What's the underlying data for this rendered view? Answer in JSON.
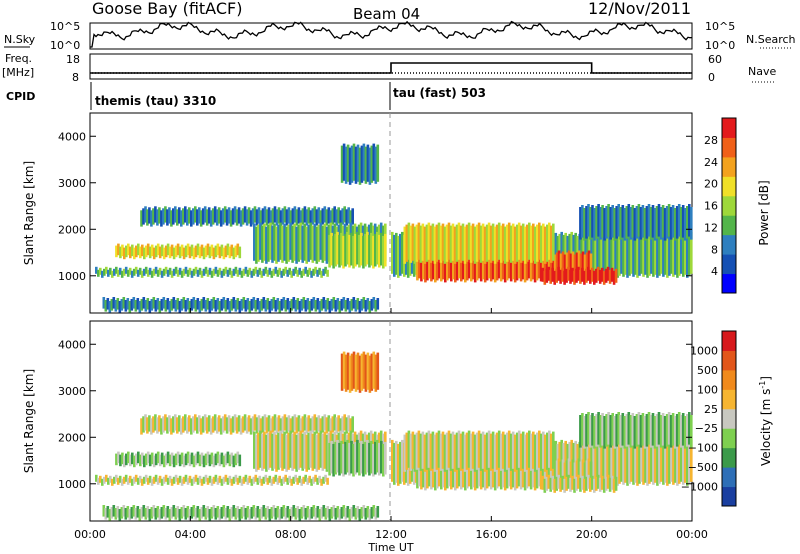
{
  "header": {
    "station": "Goose Bay (fitACF)",
    "beam": "Beam 04",
    "date": "12/Nov/2011"
  },
  "status_panel": {
    "nsky_label": "N.Sky",
    "nsky_ticks": [
      "10^5",
      "10^0"
    ],
    "nsearch_label": "N.Search",
    "nsearch_ticks": [
      "10^5",
      "10^0"
    ],
    "freq_label": "Freq.",
    "freq_unit": "[MHz]",
    "freq_ticks": [
      "18",
      "8"
    ],
    "nave_label": "Nave",
    "nave_ticks": [
      "60",
      "0"
    ],
    "cpid_label": "CPID",
    "cpid_modes": [
      {
        "name": "themis (tau) 3310",
        "start_hour": 0,
        "end_hour": 12
      },
      {
        "name": "tau (fast) 503",
        "start_hour": 12,
        "end_hour": 24
      }
    ],
    "nave_switch": {
      "low": 8,
      "high": 60,
      "high_from_hour": 12,
      "high_to_hour": 20
    }
  },
  "chart_data": [
    {
      "type": "heatmap",
      "ylabel": "Slant Range [km]",
      "xlabel": "Time UT",
      "xlim": [
        0,
        24
      ],
      "ylim": [
        200,
        4500
      ],
      "x_ticklabels": [
        "00:00",
        "04:00",
        "08:00",
        "12:00",
        "16:00",
        "20:00",
        "00:00"
      ],
      "y_ticks": [
        1000,
        2000,
        3000,
        4000
      ],
      "colorbar": {
        "label": "Power [dB]",
        "ticks": [
          "4",
          "8",
          "12",
          "16",
          "20",
          "24",
          "28"
        ],
        "colors": [
          "#0000ff",
          "#1550b4",
          "#2e7fbf",
          "#53b54a",
          "#9ed83a",
          "#f0e028",
          "#f3a21e",
          "#f06018",
          "#e31a1c"
        ]
      }
    },
    {
      "type": "heatmap",
      "ylabel": "Slant Range [km]",
      "xlabel": "Time UT",
      "xlim": [
        0,
        24
      ],
      "ylim": [
        200,
        4500
      ],
      "x_ticklabels": [
        "00:00",
        "04:00",
        "08:00",
        "12:00",
        "16:00",
        "20:00",
        "00:00"
      ],
      "y_ticks": [
        1000,
        2000,
        3000,
        4000
      ],
      "colorbar": {
        "label_main": "Velocity [m s",
        "label_exp": "-1",
        "label_end": "]",
        "ticks": [
          "1000",
          "500",
          "100",
          "25",
          "−25",
          "−100",
          "−500",
          "−1000"
        ],
        "colors": [
          "#1a3fa0",
          "#2e6fb7",
          "#3b9a4a",
          "#7ed050",
          "#c8c8c0",
          "#f6b531",
          "#f08a1c",
          "#e2561a",
          "#d7191c"
        ]
      }
    }
  ],
  "power_echoes": [
    {
      "t0": 0.2,
      "t1": 9.5,
      "r0": 1000,
      "r1": 1150,
      "c": 3
    },
    {
      "t0": 1.0,
      "t1": 6.0,
      "r0": 1400,
      "r1": 1650,
      "c": 5
    },
    {
      "t0": 2.0,
      "t1": 10.5,
      "r0": 2100,
      "r1": 2450,
      "c": 2
    },
    {
      "t0": 6.5,
      "t1": 11.8,
      "r0": 1300,
      "r1": 2100,
      "c": 3
    },
    {
      "t0": 9.5,
      "t1": 11.8,
      "r0": 1200,
      "r1": 1900,
      "c": 4
    },
    {
      "t0": 12.0,
      "t1": 24.0,
      "r0": 1000,
      "r1": 1900,
      "c": 3
    },
    {
      "t0": 13.0,
      "t1": 20.0,
      "r0": 900,
      "r1": 1500,
      "c": 7
    },
    {
      "t0": 12.5,
      "t1": 18.5,
      "r0": 1300,
      "r1": 2100,
      "c": 5
    },
    {
      "t0": 18.0,
      "t1": 21.0,
      "r0": 850,
      "r1": 1150,
      "c": 8
    },
    {
      "t0": 19.5,
      "t1": 24.0,
      "r0": 1800,
      "r1": 2500,
      "c": 2
    },
    {
      "t0": 0.5,
      "t1": 11.5,
      "r0": 250,
      "r1": 500,
      "c": 2
    },
    {
      "t0": 10.0,
      "t1": 11.5,
      "r0": 3000,
      "r1": 3800,
      "c": 2
    }
  ],
  "velocity_echoes": [
    {
      "t0": 0.2,
      "t1": 9.5,
      "r0": 1000,
      "r1": 1150,
      "c": 4
    },
    {
      "t0": 1.0,
      "t1": 6.0,
      "r0": 1400,
      "r1": 1650,
      "c": 3
    },
    {
      "t0": 2.0,
      "t1": 10.5,
      "r0": 2100,
      "r1": 2450,
      "c": 4
    },
    {
      "t0": 6.5,
      "t1": 11.8,
      "r0": 1300,
      "r1": 2100,
      "c": 4
    },
    {
      "t0": 9.5,
      "t1": 11.8,
      "r0": 1200,
      "r1": 1900,
      "c": 3
    },
    {
      "t0": 12.0,
      "t1": 24.0,
      "r0": 1000,
      "r1": 1900,
      "c": 4
    },
    {
      "t0": 13.0,
      "t1": 20.0,
      "r0": 900,
      "r1": 1500,
      "c": 4
    },
    {
      "t0": 12.5,
      "t1": 18.5,
      "r0": 1300,
      "r1": 2100,
      "c": 4
    },
    {
      "t0": 18.0,
      "t1": 21.0,
      "r0": 850,
      "r1": 1150,
      "c": 4
    },
    {
      "t0": 19.5,
      "t1": 24.0,
      "r0": 1800,
      "r1": 2500,
      "c": 3
    },
    {
      "t0": 0.5,
      "t1": 11.5,
      "r0": 250,
      "r1": 500,
      "c": 3
    },
    {
      "t0": 10.0,
      "t1": 11.5,
      "r0": 3000,
      "r1": 3800,
      "c": 6
    }
  ]
}
